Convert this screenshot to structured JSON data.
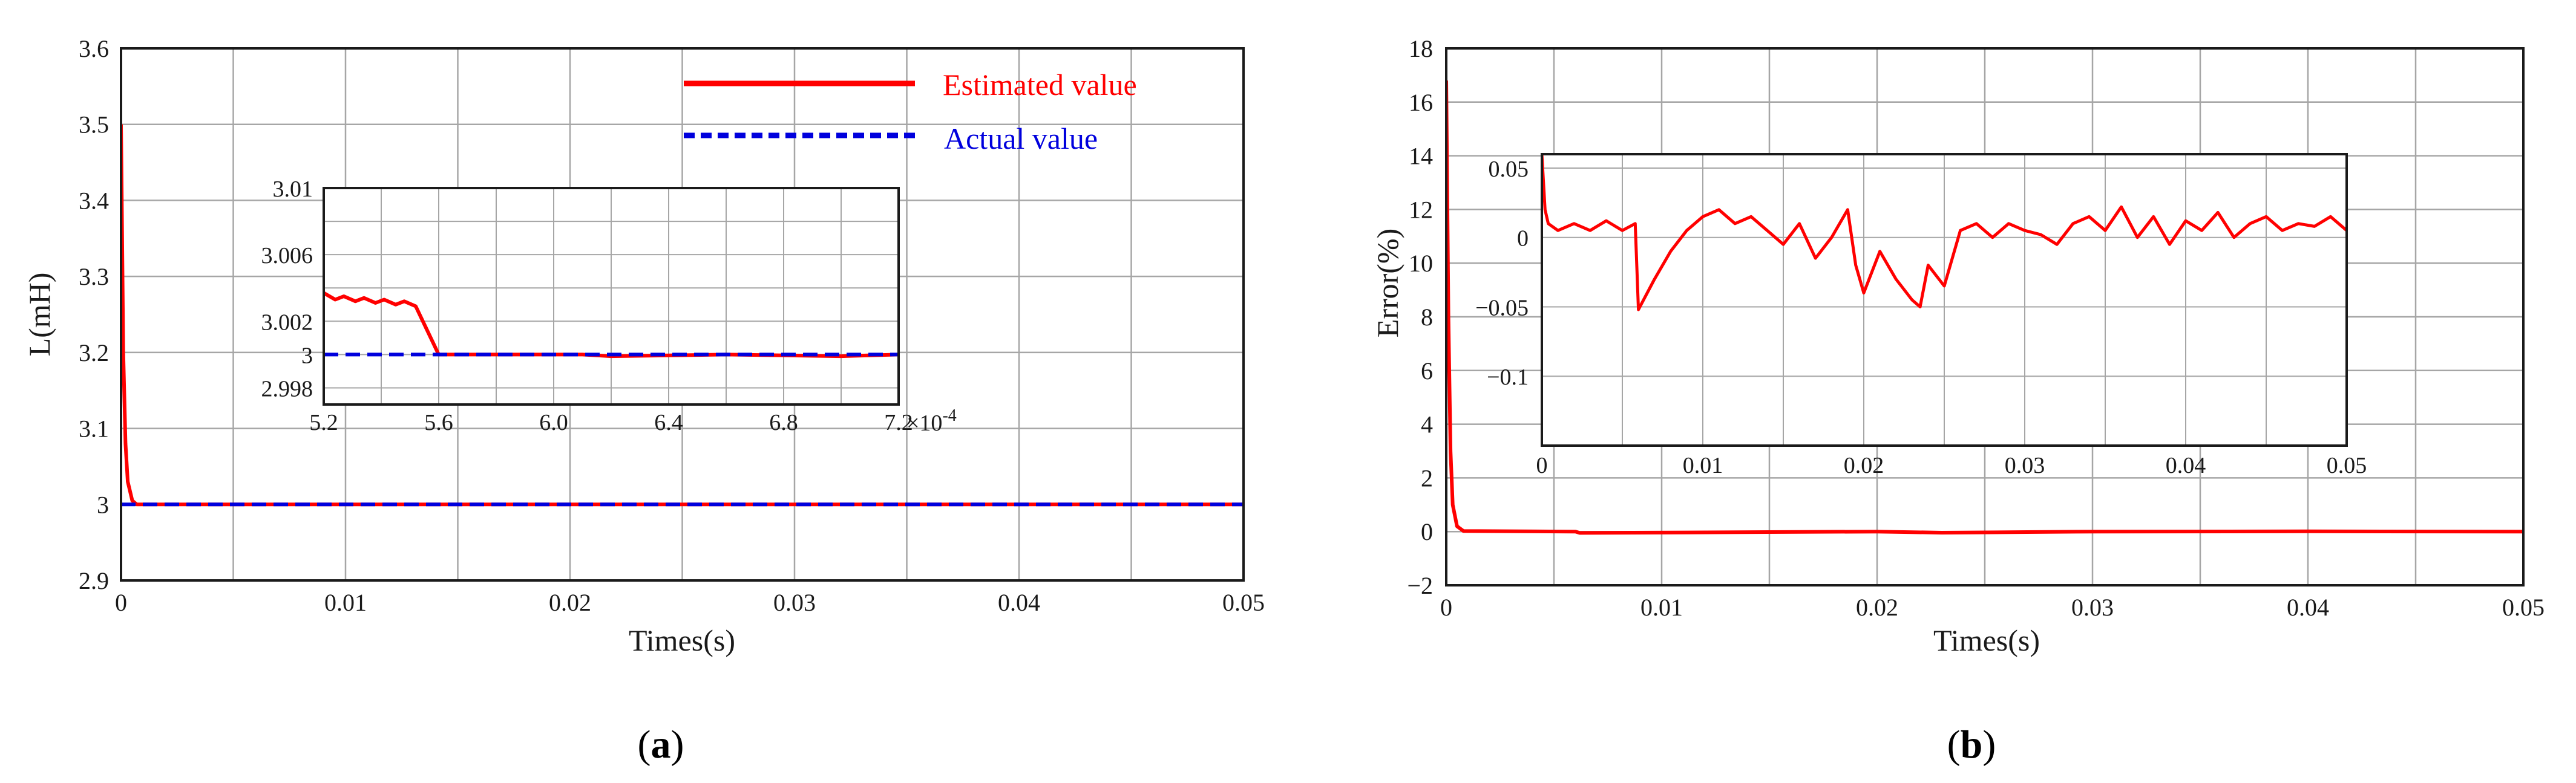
{
  "colors": {
    "estimated": "#ff0000",
    "actual": "#0000dd",
    "grid": "#a6a6a6",
    "frame": "#1a1a1a"
  },
  "chart_data": [
    {
      "id": "a",
      "type": "line",
      "caption": "a",
      "xlabel": "Times(s)",
      "ylabel": "L(mH)",
      "xlim": [
        0,
        0.05
      ],
      "ylim": [
        2.9,
        3.6
      ],
      "grid": true,
      "legend_position": "top-right",
      "xticks": [
        0,
        0.01,
        0.02,
        0.03,
        0.04,
        0.05
      ],
      "xtick_labels": [
        "0",
        "0.01",
        "0.02",
        "0.03",
        "0.04",
        "0.05"
      ],
      "yticks": [
        2.9,
        3.0,
        3.1,
        3.2,
        3.3,
        3.4,
        3.5,
        3.6
      ],
      "ytick_labels": [
        "2.9",
        "3",
        "3.1",
        "3.2",
        "3.3",
        "3.4",
        "3.5",
        "3.6"
      ],
      "series": [
        {
          "name": "Estimated value",
          "color": "#ff0000",
          "style": "solid",
          "x": [
            0,
            0.0001,
            0.0002,
            0.0003,
            0.0005,
            0.0007,
            0.01,
            0.02,
            0.03,
            0.04,
            0.05
          ],
          "y": [
            3.5,
            3.2,
            3.08,
            3.03,
            3.005,
            3.0,
            3.0,
            3.0,
            3.0,
            3.0,
            3.0
          ]
        },
        {
          "name": "Actual value",
          "color": "#0000dd",
          "style": "dashed",
          "x": [
            0,
            0.05
          ],
          "y": [
            3.0,
            3.0
          ]
        }
      ],
      "inset": {
        "xlim": [
          5.2,
          7.2
        ],
        "ylim": [
          2.997,
          3.01
        ],
        "xticks": [
          5.2,
          5.6,
          6.0,
          6.4,
          6.8,
          7.2
        ],
        "xtick_labels": [
          "5.2",
          "5.6",
          "6.0",
          "6.4",
          "6.8",
          "7.2"
        ],
        "x_multiplier": "×10",
        "x_multiplier_exp": "-4",
        "yticks": [
          2.998,
          3.0,
          3.002,
          3.006,
          3.01
        ],
        "ytick_labels": [
          "2.998",
          "3",
          "3.002",
          "3.006",
          "3.01"
        ],
        "series": [
          {
            "name": "Estimated value",
            "color": "#ff0000",
            "style": "solid",
            "x": [
              5.2,
              5.24,
              5.27,
              5.31,
              5.34,
              5.38,
              5.41,
              5.45,
              5.48,
              5.52,
              5.6,
              6.1,
              6.2,
              6.6,
              7.0,
              7.2
            ],
            "y": [
              3.0037,
              3.0033,
              3.0035,
              3.0032,
              3.0034,
              3.0031,
              3.0033,
              3.003,
              3.0032,
              3.0029,
              3.0,
              3.0,
              2.9999,
              3.0,
              2.9999,
              3.0
            ]
          },
          {
            "name": "Actual value",
            "color": "#0000dd",
            "style": "dashed",
            "x": [
              5.2,
              7.2
            ],
            "y": [
              3.0,
              3.0
            ]
          }
        ]
      }
    },
    {
      "id": "b",
      "type": "line",
      "caption": "b",
      "xlabel": "Times(s)",
      "ylabel": "Error(%)",
      "xlim": [
        0,
        0.05
      ],
      "ylim": [
        -2,
        18
      ],
      "grid": true,
      "xticks": [
        0,
        0.01,
        0.02,
        0.03,
        0.04,
        0.05
      ],
      "xtick_labels": [
        "0",
        "0.01",
        "0.02",
        "0.03",
        "0.04",
        "0.05"
      ],
      "yticks": [
        -2,
        0,
        2,
        4,
        6,
        8,
        10,
        12,
        14,
        16,
        18
      ],
      "ytick_labels": [
        "−2",
        "0",
        "2",
        "4",
        "6",
        "8",
        "10",
        "12",
        "14",
        "16",
        "18"
      ],
      "series": [
        {
          "name": "Error",
          "color": "#ff0000",
          "style": "solid",
          "x": [
            0,
            0.0001,
            0.0002,
            0.0003,
            0.0005,
            0.0008,
            0.006,
            0.0062,
            0.02,
            0.023,
            0.03,
            0.04,
            0.05
          ],
          "y": [
            16.8,
            8.0,
            3.0,
            1.0,
            0.2,
            0.02,
            0.0,
            -0.05,
            0.0,
            -0.04,
            0.0,
            0.01,
            0.0
          ]
        }
      ],
      "inset": {
        "xlim": [
          0,
          0.05
        ],
        "ylim": [
          -0.15,
          0.06
        ],
        "xticks": [
          0,
          0.01,
          0.02,
          0.03,
          0.04,
          0.05
        ],
        "xtick_labels": [
          "0",
          "0.01",
          "0.02",
          "0.03",
          "0.04",
          "0.05"
        ],
        "yticks": [
          -0.1,
          -0.05,
          0,
          0.05
        ],
        "ytick_labels": [
          "−0.1",
          "−0.05",
          "0",
          "0.05"
        ],
        "series": [
          {
            "name": "Error",
            "color": "#ff0000",
            "style": "solid",
            "x": [
              0,
              0.0002,
              0.0004,
              0.001,
              0.002,
              0.003,
              0.004,
              0.005,
              0.0058,
              0.006,
              0.007,
              0.008,
              0.009,
              0.01,
              0.011,
              0.012,
              0.013,
              0.014,
              0.015,
              0.016,
              0.017,
              0.018,
              0.019,
              0.0195,
              0.02,
              0.021,
              0.022,
              0.023,
              0.0235,
              0.024,
              0.025,
              0.026,
              0.027,
              0.028,
              0.029,
              0.03,
              0.031,
              0.032,
              0.033,
              0.034,
              0.035,
              0.036,
              0.037,
              0.038,
              0.039,
              0.04,
              0.041,
              0.042,
              0.043,
              0.044,
              0.045,
              0.046,
              0.047,
              0.048,
              0.049,
              0.05
            ],
            "y": [
              0.06,
              0.02,
              0.01,
              0.005,
              0.01,
              0.005,
              0.012,
              0.005,
              0.01,
              -0.052,
              -0.03,
              -0.01,
              0.005,
              0.015,
              0.02,
              0.01,
              0.015,
              0.005,
              -0.005,
              0.01,
              -0.015,
              0.0,
              0.02,
              -0.02,
              -0.04,
              -0.01,
              -0.03,
              -0.045,
              -0.05,
              -0.02,
              -0.035,
              0.005,
              0.01,
              0.0,
              0.01,
              0.005,
              0.002,
              -0.005,
              0.01,
              0.015,
              0.005,
              0.022,
              0.0,
              0.015,
              -0.005,
              0.012,
              0.005,
              0.018,
              0.0,
              0.01,
              0.015,
              0.005,
              0.01,
              0.008,
              0.015,
              0.005
            ]
          }
        ]
      }
    }
  ]
}
